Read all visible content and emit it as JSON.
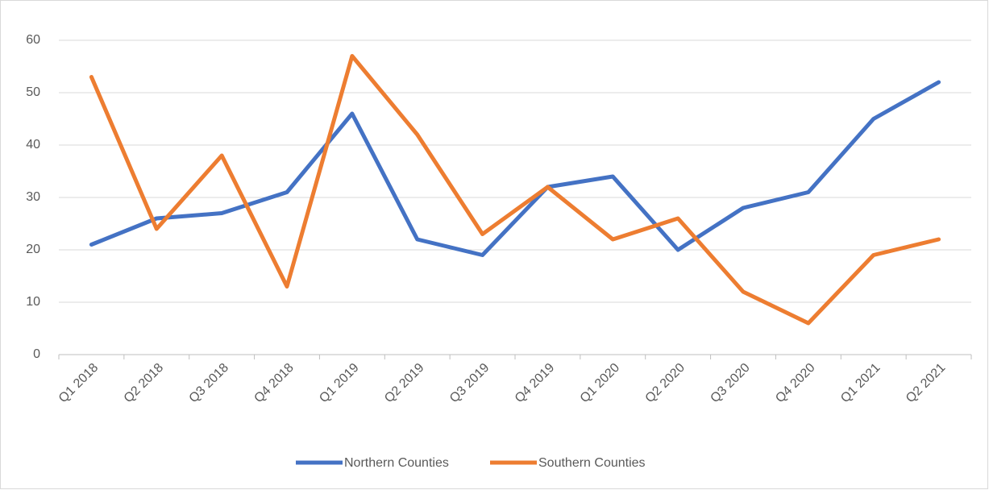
{
  "chart_data": {
    "type": "line",
    "categories": [
      "Q1 2018",
      "Q2 2018",
      "Q3 2018",
      "Q4 2018",
      "Q1 2019",
      "Q2 2019",
      "Q3 2019",
      "Q4 2019",
      "Q1 2020",
      "Q2 2020",
      "Q3 2020",
      "Q4 2020",
      "Q1 2021",
      "Q2 2021"
    ],
    "series": [
      {
        "name": "Northern Counties",
        "color": "#4472c4",
        "values": [
          21,
          26,
          27,
          31,
          46,
          22,
          19,
          32,
          34,
          20,
          28,
          31,
          45,
          52
        ]
      },
      {
        "name": "Southern Counties",
        "color": "#ed7d31",
        "values": [
          53,
          24,
          38,
          13,
          57,
          42,
          23,
          32,
          22,
          26,
          12,
          6,
          19,
          22
        ]
      }
    ],
    "ylim": [
      0,
      60
    ],
    "yticks": [
      0,
      10,
      20,
      30,
      40,
      50,
      60
    ],
    "grid": true,
    "legend": "bottom"
  }
}
